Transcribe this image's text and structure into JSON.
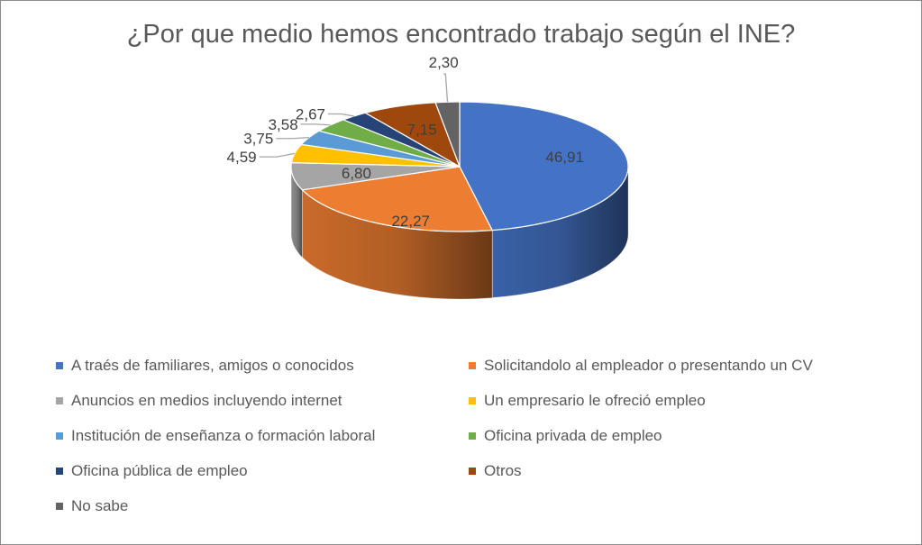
{
  "chart_data": {
    "type": "pie",
    "title": "¿Por que medio hemos encontrado trabajo según el INE?",
    "legend_position": "bottom",
    "slices": [
      {
        "name": "A traés de familiares, amigos o conocidos",
        "value": 46.91,
        "label": "46,91",
        "color": "#4472C4"
      },
      {
        "name": "Solicitandolo al empleador o presentando un CV",
        "value": 22.27,
        "label": "22,27",
        "color": "#ED7D31"
      },
      {
        "name": "Anuncios en medios incluyendo internet",
        "value": 6.8,
        "label": "6,80",
        "color": "#A5A5A5"
      },
      {
        "name": "Un empresario le ofreció empleo",
        "value": 4.59,
        "label": "4,59",
        "color": "#FFC000"
      },
      {
        "name": "Institución de enseñanza o formación laboral",
        "value": 3.75,
        "label": "3,75",
        "color": "#5B9BD5"
      },
      {
        "name": "Oficina privada de empleo",
        "value": 3.58,
        "label": "3,58",
        "color": "#70AD47"
      },
      {
        "name": "Oficina pública de empleo",
        "value": 2.67,
        "label": "2,67",
        "color": "#264478"
      },
      {
        "name": "Otros",
        "value": 7.15,
        "label": "7,15",
        "color": "#9E480E"
      },
      {
        "name": "No sabe",
        "value": 2.3,
        "label": "2,30",
        "color": "#636363"
      }
    ]
  }
}
